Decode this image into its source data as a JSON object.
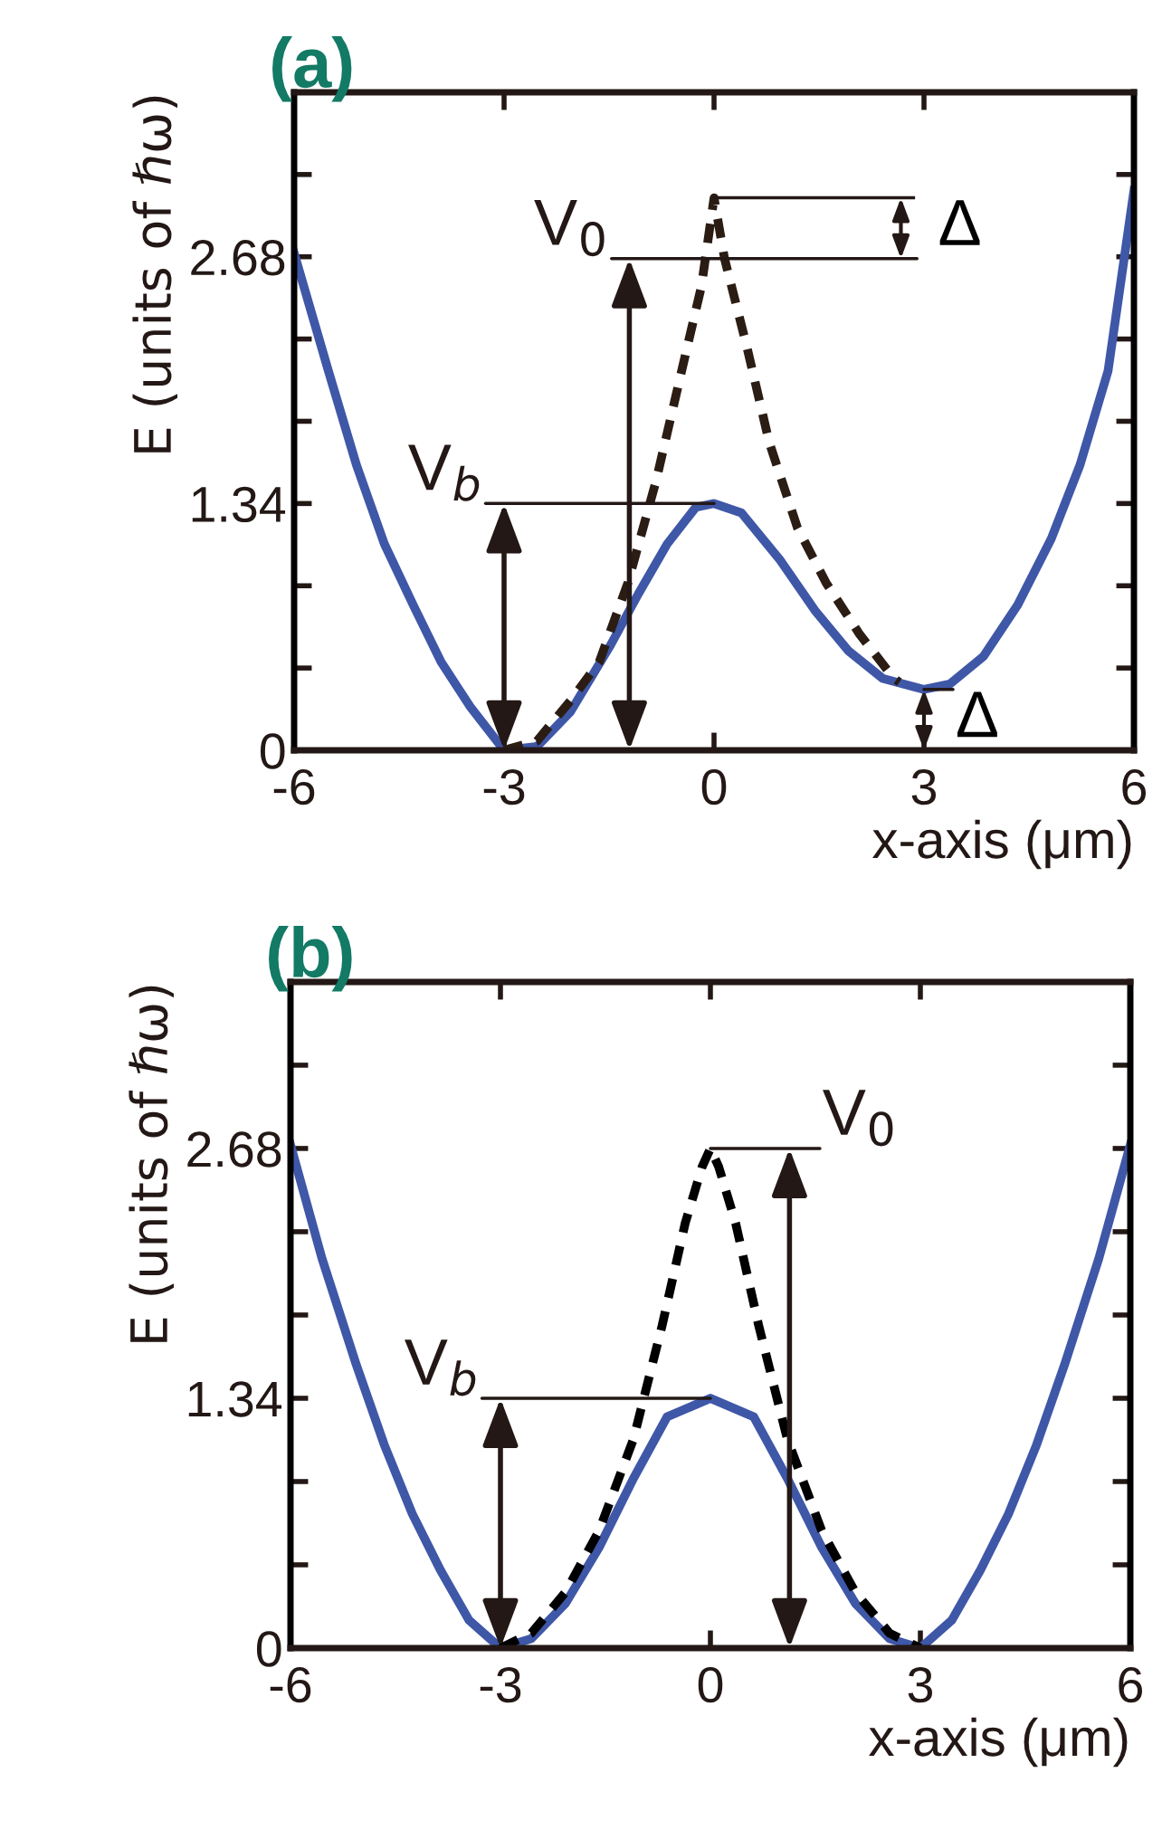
{
  "chart_data": [
    {
      "type": "line",
      "title": "(a)",
      "xlabel": "x-axis (μm)",
      "ylabel": "E (units of ℏω)",
      "xlim": [
        -6,
        6
      ],
      "xticks": [
        -6,
        -3,
        0,
        3,
        6
      ],
      "ylim": [
        0,
        3.573
      ],
      "yticks": [
        0,
        1.34,
        2.68
      ],
      "grid": false,
      "legend": false,
      "series": [
        {
          "color": "#3f57a7",
          "line_style": "solid",
          "x": [
            -6,
            -5.51,
            -5.11,
            -4.71,
            -4.3,
            -3.9,
            -3.49,
            -3,
            -2.53,
            -2.05,
            -1.48,
            -1.08,
            -0.67,
            -0.26,
            0,
            0.39,
            0.95,
            1.44,
            1.92,
            2.41,
            3,
            3.37,
            3.85,
            4.34,
            4.82,
            5.23,
            5.63,
            6
          ],
          "values": [
            2.7,
            2.06,
            1.55,
            1.12,
            0.79,
            0.48,
            0.24,
            0,
            0.02,
            0.21,
            0.57,
            0.85,
            1.12,
            1.32,
            1.34,
            1.29,
            1.03,
            0.76,
            0.54,
            0.39,
            0.33,
            0.36,
            0.51,
            0.79,
            1.15,
            1.55,
            2.06,
            3.04
          ]
        },
        {
          "color": "#2b1d14",
          "line_style": "dashed",
          "x": [
            -3,
            -2.53,
            -2.05,
            -1.64,
            -1.23,
            -0.83,
            -0.42,
            -0.18,
            0,
            0.15,
            0.47,
            0.79,
            1.19,
            1.6,
            2.08,
            2.57,
            2.65
          ],
          "values": [
            0,
            0.05,
            0.27,
            0.48,
            0.91,
            1.46,
            2.13,
            2.52,
            3.0,
            2.67,
            2.19,
            1.67,
            1.21,
            0.91,
            0.63,
            0.39,
            0.37
          ]
        }
      ],
      "annotations": [
        {
          "text": "V$_{b}$",
          "x": 0,
          "y": 1.34
        },
        {
          "text": "V$_{0}$",
          "x": 0.15,
          "y": 2.67
        },
        "Δ",
        {
          "text": "Δ",
          "x": 3,
          "y": 0.33
        }
      ]
    },
    {
      "type": "line",
      "title": "(b)",
      "xlabel": "x-axis (μm)",
      "ylabel": "E (units of ℏω)",
      "xlim": [
        -6,
        6
      ],
      "xticks": [
        -6,
        -3,
        0,
        3,
        6
      ],
      "ylim": [
        0,
        3.573
      ],
      "yticks": [
        0,
        1.34,
        2.68
      ],
      "grid": false,
      "legend": false,
      "series": [
        {
          "color": "#3f57a7",
          "line_style": "solid",
          "x": [
            -6,
            -5.55,
            -5.06,
            -4.66,
            -4.26,
            -3.86,
            -3.45,
            -3,
            -2.56,
            -2.07,
            -1.59,
            -1.1,
            -0.62,
            0,
            0.62,
            1.1,
            1.59,
            2.07,
            2.56,
            3,
            3.45,
            3.86,
            4.26,
            4.66,
            5.06,
            5.55,
            6
          ],
          "values": [
            2.7,
            2.09,
            1.52,
            1.09,
            0.72,
            0.42,
            0.15,
            0,
            0.05,
            0.24,
            0.54,
            0.91,
            1.24,
            1.34,
            1.24,
            0.91,
            0.54,
            0.24,
            0.05,
            0,
            0.15,
            0.42,
            0.72,
            1.09,
            1.52,
            2.09,
            2.7
          ]
        },
        {
          "color": "#000000",
          "line_style": "dashed",
          "x": [
            -3,
            -2.56,
            -2.07,
            -1.59,
            -1.1,
            -0.69,
            -0.36,
            -0.12,
            0,
            0.12,
            0.36,
            0.69,
            1.1,
            1.59,
            2.07,
            2.56,
            3
          ],
          "values": [
            0,
            0.08,
            0.3,
            0.63,
            1.12,
            1.73,
            2.28,
            2.58,
            2.68,
            2.58,
            2.28,
            1.73,
            1.12,
            0.63,
            0.3,
            0.08,
            0
          ]
        }
      ],
      "annotations": [
        {
          "text": "V$_{b}$",
          "x": 0,
          "y": 1.34
        },
        {
          "text": "V$_{0}$",
          "x": 0,
          "y": 2.68
        }
      ]
    }
  ]
}
